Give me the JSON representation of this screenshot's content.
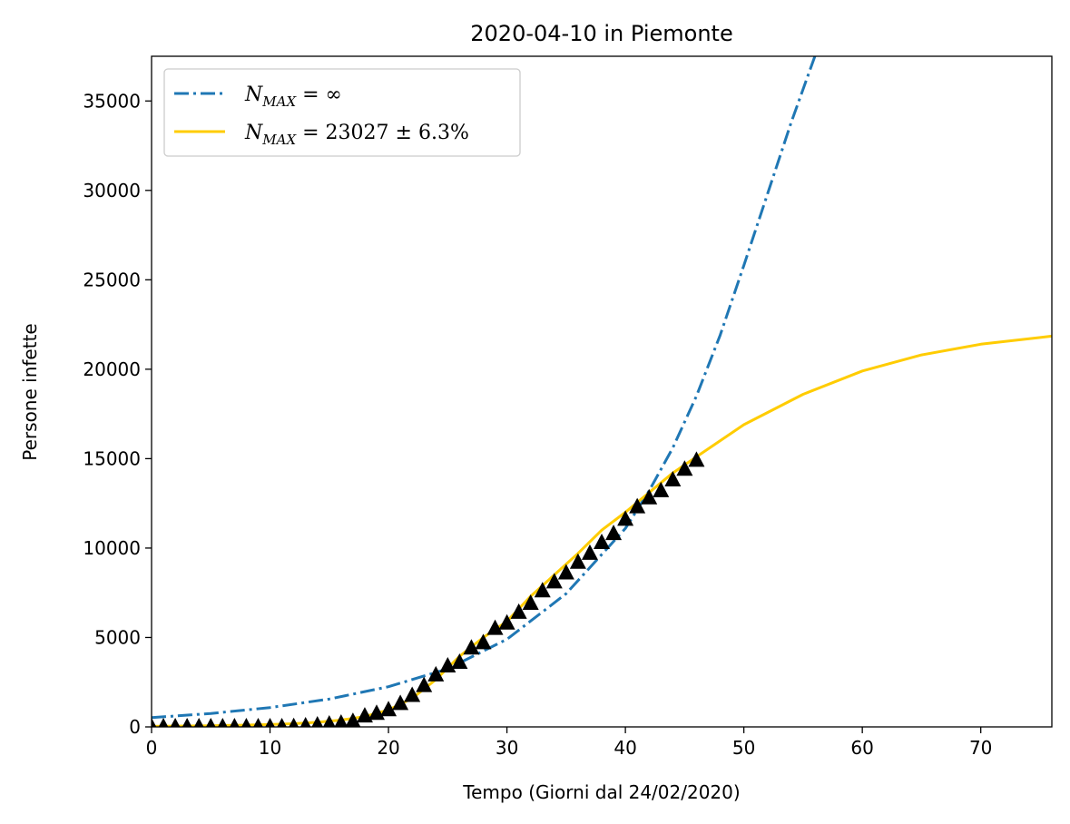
{
  "chart_data": {
    "type": "line",
    "title": "2020-04-10 in Piemonte",
    "xlabel": "Tempo (Giorni dal 24/02/2020)",
    "ylabel": "Persone infette",
    "xlim": [
      0,
      76
    ],
    "ylim": [
      0,
      37500
    ],
    "xticks": [
      0,
      10,
      20,
      30,
      40,
      50,
      60,
      70
    ],
    "yticks": [
      0,
      5000,
      10000,
      15000,
      20000,
      25000,
      30000,
      35000
    ],
    "grid": false,
    "legend_position": "upper-left",
    "colors": {
      "exponential": "#1f77b4",
      "logistic": "#ffcc00",
      "observed": "#000000"
    },
    "series": [
      {
        "name": "N_MAX = ∞",
        "kind": "model",
        "style": "dash-dot",
        "x": [
          0,
          5,
          10,
          15,
          20,
          25,
          30,
          35,
          40,
          42,
          44,
          46,
          48,
          50,
          52,
          54,
          56
        ],
        "y": [
          520,
          750,
          1080,
          1560,
          2250,
          3250,
          4900,
          7450,
          11100,
          13200,
          15600,
          18500,
          21900,
          25800,
          29800,
          33800,
          37500
        ]
      },
      {
        "name": "N_MAX = 23027 ± 6.3%",
        "kind": "model",
        "style": "solid",
        "x": [
          0,
          5,
          10,
          12,
          14,
          16,
          18,
          20,
          22,
          24,
          26,
          28,
          30,
          32,
          34,
          36,
          38,
          40,
          42,
          44,
          46,
          50,
          55,
          60,
          65,
          70,
          76
        ],
        "y": [
          30,
          60,
          130,
          180,
          260,
          380,
          580,
          950,
          1600,
          2650,
          3950,
          5000,
          5900,
          7300,
          8500,
          9700,
          11000,
          12000,
          13100,
          14200,
          15100,
          16900,
          18600,
          19900,
          20800,
          21400,
          21850
        ]
      },
      {
        "name": "",
        "kind": "observed",
        "style": "triangle-markers",
        "x": [
          0,
          1,
          2,
          3,
          4,
          5,
          6,
          7,
          8,
          9,
          10,
          11,
          12,
          13,
          14,
          15,
          16,
          17,
          18,
          19,
          20,
          21,
          22,
          23,
          24,
          25,
          26,
          27,
          28,
          29,
          30,
          31,
          32,
          33,
          34,
          35,
          36,
          37,
          38,
          39,
          40,
          41,
          42,
          43,
          44,
          45,
          46
        ],
        "y": [
          0,
          0,
          0,
          0,
          0,
          0,
          0,
          0,
          0,
          0,
          0,
          0,
          10,
          50,
          100,
          150,
          200,
          300,
          600,
          750,
          950,
          1300,
          1750,
          2300,
          2900,
          3400,
          3600,
          4400,
          4700,
          5500,
          5800,
          6400,
          6900,
          7600,
          8100,
          8600,
          9200,
          9700,
          10300,
          10800,
          11600,
          12300,
          12800,
          13200,
          13800,
          14400,
          14900
        ]
      }
    ],
    "legend": [
      {
        "main": "N",
        "sub": "MAX",
        "rest": " = ∞",
        "series": 0
      },
      {
        "main": "N",
        "sub": "MAX",
        "rest": " = 23027 ± 6.3%",
        "series": 1
      }
    ]
  }
}
